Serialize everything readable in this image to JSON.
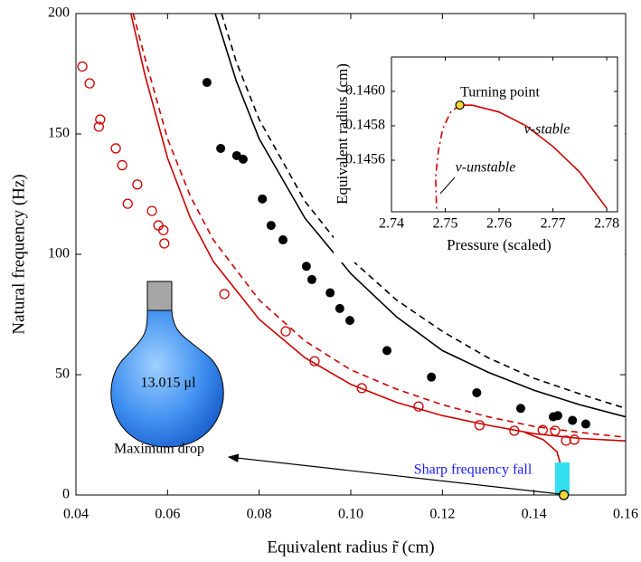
{
  "chart_data": [
    {
      "type": "line",
      "xlabel": "Equivalent radius r̃ (cm)",
      "ylabel": "Natural frequency (Hz)",
      "xlim": [
        0.04,
        0.16
      ],
      "ylim": [
        0,
        200
      ],
      "xticks": [
        0.04,
        0.06,
        0.08,
        {
          "value": 0.1,
          "label": "0.10"
        },
        0.12,
        0.14,
        0.16
      ],
      "yticks": [
        0,
        50,
        100,
        150,
        200
      ],
      "annotations": [
        "13.015 μl",
        "Maximum drop",
        "Sharp frequency fall"
      ],
      "series": [
        {
          "color": "#000000",
          "style": "filled",
          "x": [
            0.0686,
            0.0716,
            0.0751,
            0.0765,
            0.0807,
            0.0826,
            0.0852,
            0.0903,
            0.0915,
            0.0955,
            0.0976,
            0.0998,
            0.1079,
            0.1176,
            0.1275,
            0.1371,
            0.1442,
            0.1452,
            0.1484,
            0.1513
          ],
          "values": [
            171.4,
            144,
            141,
            139.5,
            123,
            112,
            106,
            95,
            89.5,
            84,
            77.5,
            72.5,
            60,
            49,
            42.5,
            36,
            32.5,
            33,
            31,
            29.5
          ]
        },
        {
          "color": "#cc0000",
          "style": "open",
          "x": [
            0.0414,
            0.043,
            0.0453,
            0.045,
            0.0487,
            0.0501,
            0.0513,
            0.0534,
            0.0566,
            0.058,
            0.0591,
            0.0593,
            0.0724,
            0.0858,
            0.0921,
            0.1024,
            0.1148,
            0.1281,
            0.1357,
            0.1419,
            0.1446,
            0.147,
            0.1488
          ],
          "values": [
            178,
            171,
            156,
            153,
            144,
            137,
            121,
            129,
            118,
            112,
            110,
            104.5,
            83.5,
            68,
            55.6,
            44.4,
            36.8,
            29,
            26.7,
            27,
            26.7,
            22.6,
            23
          ]
        },
        {
          "color": "#000000",
          "style": "solid",
          "x": [
            0.0704,
            0.075,
            0.08,
            0.09,
            0.1,
            0.11,
            0.12,
            0.13,
            0.14,
            0.15,
            0.16
          ],
          "values": [
            200,
            172,
            148,
            115,
            92,
            74,
            60,
            51,
            43.5,
            37.5,
            32.5
          ]
        },
        {
          "color": "#000000",
          "style": "dashed",
          "x": [
            0.0718,
            0.075,
            0.08,
            0.09,
            0.1,
            0.11,
            0.12,
            0.13,
            0.14,
            0.15,
            0.16
          ],
          "values": [
            200,
            180,
            156,
            122,
            98,
            81,
            68,
            57,
            48.5,
            42,
            36
          ]
        },
        {
          "color": "#cc0000",
          "style": "solid",
          "x": [
            0.052,
            0.055,
            0.06,
            0.065,
            0.07,
            0.08,
            0.09,
            0.1,
            0.11,
            0.12,
            0.13,
            0.14,
            0.15,
            0.16
          ],
          "values": [
            200,
            175,
            140,
            115,
            97,
            73,
            57,
            46,
            38.5,
            33,
            29,
            25.5,
            23.5,
            22.5
          ]
        },
        {
          "color": "#cc0000",
          "style": "solid",
          "x": [
            0.138,
            0.142,
            0.145,
            0.1462,
            0.1465
          ],
          "values": [
            26,
            23,
            18,
            10,
            0
          ]
        },
        {
          "color": "#cc0000",
          "style": "dashed",
          "x": [
            0.0525,
            0.055,
            0.06,
            0.065,
            0.07,
            0.08,
            0.09,
            0.1,
            0.11,
            0.12,
            0.13,
            0.14,
            0.15,
            0.16
          ],
          "values": [
            200,
            182,
            148,
            124,
            106,
            81,
            64,
            52,
            44,
            37.5,
            32.5,
            28.5,
            26,
            24
          ]
        },
        {
          "color": "#f5d33a",
          "style": "marker",
          "x": [
            0.1465
          ],
          "values": [
            0
          ]
        }
      ]
    },
    {
      "type": "line",
      "xlabel": "Pressure (scaled)",
      "ylabel": "Equivalent radius (cm)",
      "xlim": [
        2.74,
        2.782
      ],
      "ylim": [
        0.1453,
        0.1462
      ],
      "xticks": [
        2.74,
        2.75,
        2.76,
        2.77,
        2.78
      ],
      "yticks": [
        0.1456,
        0.1458,
        {
          "value": 0.146,
          "label": "0.1460"
        }
      ],
      "annotations": [
        "Turning point",
        "v-stable",
        "v-unstable"
      ],
      "series": [
        {
          "color": "#cc0000",
          "style": "solid",
          "x": [
            2.7527,
            2.755,
            2.76,
            2.765,
            2.77,
            2.775,
            2.78
          ],
          "values": [
            0.14592,
            0.14592,
            0.14588,
            0.1458,
            0.14568,
            0.14553,
            0.14532
          ]
        },
        {
          "color": "#cc0000",
          "style": "dashdot",
          "x": [
            2.7527,
            2.751,
            2.7495,
            2.7487,
            2.7482,
            2.7484
          ],
          "values": [
            0.14592,
            0.14588,
            0.14578,
            0.14565,
            0.1455,
            0.1453
          ]
        },
        {
          "color": "#f5d33a",
          "style": "marker",
          "x": [
            2.7527
          ],
          "values": [
            0.14592
          ]
        }
      ]
    }
  ]
}
